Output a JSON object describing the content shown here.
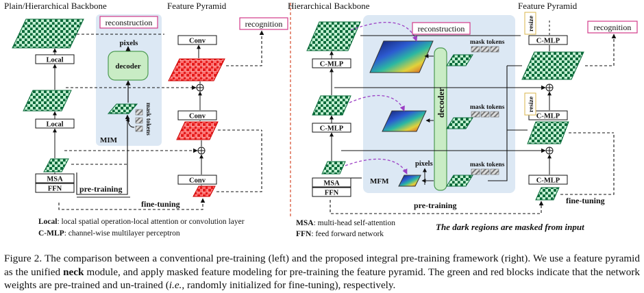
{
  "left": {
    "title_backbone": "Plain/Hierarchical Backbone",
    "title_pyramid": "Feature Pyramid",
    "reconstruction": "reconstruction",
    "recognition": "recognition",
    "pixels": "pixels",
    "decoder": "decoder",
    "mask_tokens": "mask tokens",
    "mim": "MIM",
    "local1": "Local",
    "local2": "Local",
    "msa": "MSA",
    "ffn": "FFN",
    "conv1": "Conv",
    "conv2": "Conv",
    "conv3": "Conv",
    "pretraining": "pre-training",
    "finetuning": "fine-tuning",
    "legend_local_key": "Local",
    "legend_local_text": ": local spatial operation-local attention or convolution layer",
    "legend_cmlp_key": "C-MLP",
    "legend_cmlp_text": ": channel-wise multilayer perceptron"
  },
  "right": {
    "title_backbone": "Hierarchical Backbone",
    "title_pyramid": "Feature Pyramid",
    "reconstruction": "reconstruction",
    "recognition": "recognition",
    "decoder": "decoder",
    "mask_tokens_1": "mask tokens",
    "mask_tokens_2": "mask tokens",
    "mask_tokens_3": "mask tokens",
    "pixels": "pixels",
    "mfm": "MFM",
    "cmlp1": "C-MLP",
    "cmlp2": "C-MLP",
    "msa": "MSA",
    "ffn": "FFN",
    "pcmlp1": "C-MLP",
    "pcmlp2": "C-MLP",
    "pcmlp3": "C-MLP",
    "resize1": "resize",
    "resize2": "resize",
    "pretraining": "pre-training",
    "finetuning": "fine-tuning",
    "legend_msa_key": "MSA",
    "legend_msa_text": ": multi-head self-attention",
    "legend_ffn_key": "FFN",
    "legend_ffn_text": ": feed forward network",
    "note": "The dark regions are masked from input"
  },
  "caption": {
    "p1": "Figure 2. The comparison between a conventional pre-training (left) and the proposed integral pre-training framework (right). We use a feature pyramid as the unified ",
    "neck": "neck",
    "p2": " module, and apply masked feature modeling for pre-training the feature pyramid. The green and red blocks indicate that the network weights are pre-trained and un-trained (",
    "ie": "i.e.",
    "p3": ", randomly initialized for fine-tuning), respectively."
  },
  "colors": {
    "green_dark": "#0a6b3a",
    "green_light": "#b8ecc8",
    "red": "#e51b1b",
    "red_light": "#ffd0d0",
    "panel_blue": "#dce8f4",
    "pink": "#d23a88",
    "purple_dashed": "#9b3fc4"
  }
}
